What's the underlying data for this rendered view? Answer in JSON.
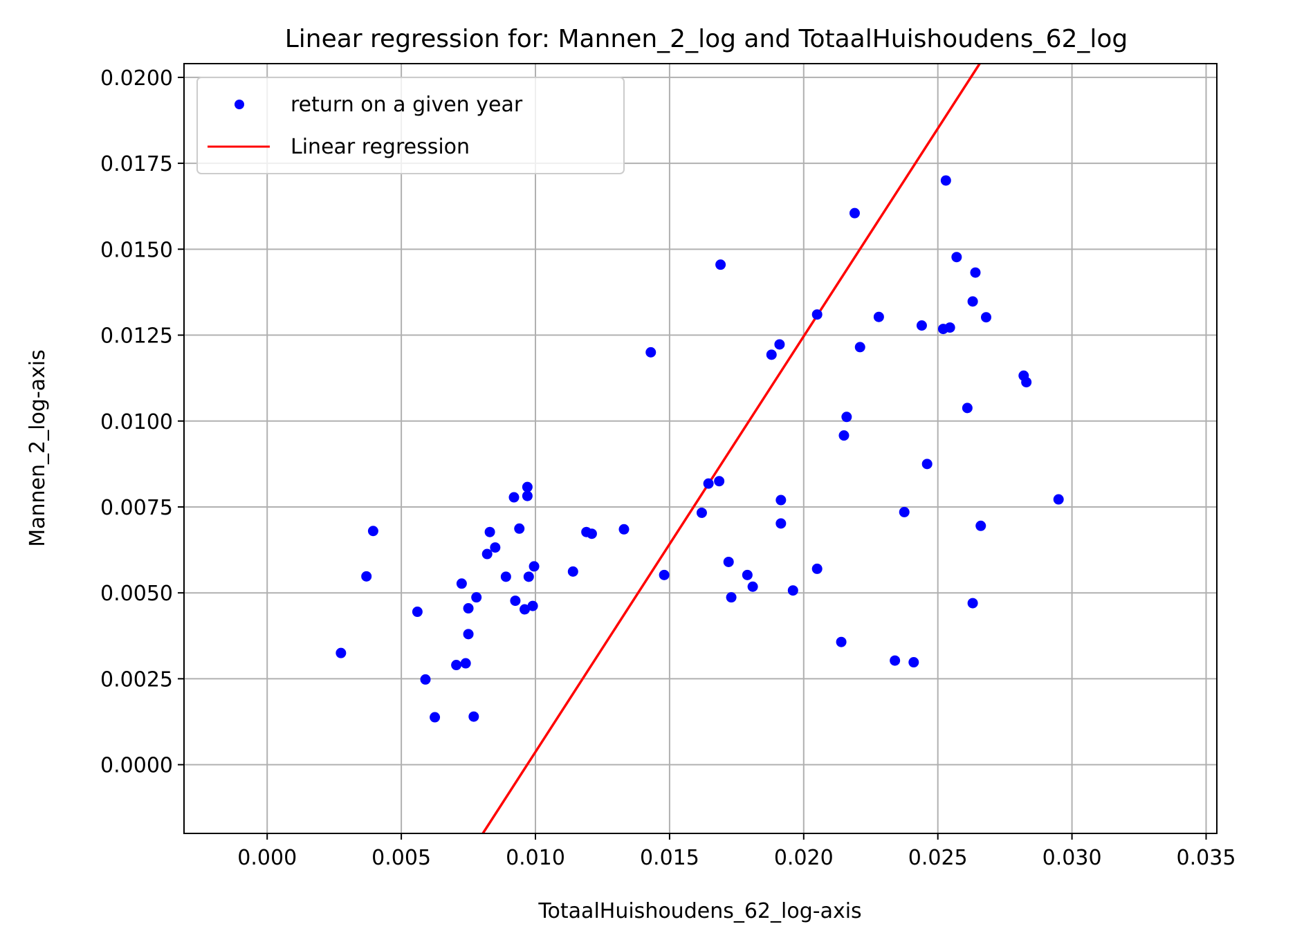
{
  "chart_data": {
    "type": "scatter",
    "title": "Linear regression for: Mannen_2_log and TotaalHuishoudens_62_log",
    "xlabel": "TotaalHuishoudens_62_log-axis",
    "ylabel": "Mannen_2_log-axis",
    "xlim": [
      -0.0031,
      0.0354
    ],
    "ylim": [
      -0.002,
      0.0204
    ],
    "xticks": [
      "0.000",
      "0.005",
      "0.010",
      "0.015",
      "0.020",
      "0.025",
      "0.030",
      "0.035"
    ],
    "xtick_values": [
      0.0,
      0.005,
      0.01,
      0.015,
      0.02,
      0.025,
      0.03,
      0.035
    ],
    "yticks": [
      "0.0000",
      "0.0025",
      "0.0050",
      "0.0075",
      "0.0100",
      "0.0125",
      "0.0150",
      "0.0175",
      "0.0200"
    ],
    "ytick_values": [
      0.0,
      0.0025,
      0.005,
      0.0075,
      0.01,
      0.0125,
      0.015,
      0.0175,
      0.02
    ],
    "grid": true,
    "legend_position": "top-left",
    "colors": {
      "points": "#0000ff",
      "regression": "#ff0000"
    },
    "series": [
      {
        "name": "return on a given year",
        "kind": "scatter",
        "points": [
          [
            0.00275,
            0.00325
          ],
          [
            0.0037,
            0.00548
          ],
          [
            0.00395,
            0.0068
          ],
          [
            0.0056,
            0.00445
          ],
          [
            0.0059,
            0.00248
          ],
          [
            0.00625,
            0.00138
          ],
          [
            0.00705,
            0.0029
          ],
          [
            0.00725,
            0.00527
          ],
          [
            0.0074,
            0.00295
          ],
          [
            0.0075,
            0.00455
          ],
          [
            0.0075,
            0.0038
          ],
          [
            0.0077,
            0.0014
          ],
          [
            0.0078,
            0.00487
          ],
          [
            0.0082,
            0.00613
          ],
          [
            0.0083,
            0.00677
          ],
          [
            0.0085,
            0.00632
          ],
          [
            0.0089,
            0.00547
          ],
          [
            0.0092,
            0.00778
          ],
          [
            0.00925,
            0.00477
          ],
          [
            0.0094,
            0.00687
          ],
          [
            0.0096,
            0.00452
          ],
          [
            0.0097,
            0.00808
          ],
          [
            0.0097,
            0.00782
          ],
          [
            0.00975,
            0.00547
          ],
          [
            0.0099,
            0.00462
          ],
          [
            0.00995,
            0.00577
          ],
          [
            0.0114,
            0.00562
          ],
          [
            0.0119,
            0.00677
          ],
          [
            0.0121,
            0.00672
          ],
          [
            0.0133,
            0.00685
          ],
          [
            0.0143,
            0.012
          ],
          [
            0.0148,
            0.00552
          ],
          [
            0.0162,
            0.00733
          ],
          [
            0.01645,
            0.00818
          ],
          [
            0.01685,
            0.00825
          ],
          [
            0.0169,
            0.01455
          ],
          [
            0.0172,
            0.0059
          ],
          [
            0.0173,
            0.00487
          ],
          [
            0.0179,
            0.00552
          ],
          [
            0.0181,
            0.00518
          ],
          [
            0.0188,
            0.01193
          ],
          [
            0.0191,
            0.01223
          ],
          [
            0.01915,
            0.0077
          ],
          [
            0.01915,
            0.00702
          ],
          [
            0.0196,
            0.00507
          ],
          [
            0.0205,
            0.0131
          ],
          [
            0.0205,
            0.0057
          ],
          [
            0.0214,
            0.00357
          ],
          [
            0.0215,
            0.00958
          ],
          [
            0.0216,
            0.01012
          ],
          [
            0.0219,
            0.01605
          ],
          [
            0.0221,
            0.01215
          ],
          [
            0.0228,
            0.01303
          ],
          [
            0.0234,
            0.00303
          ],
          [
            0.02375,
            0.00735
          ],
          [
            0.0241,
            0.00298
          ],
          [
            0.0244,
            0.01278
          ],
          [
            0.0246,
            0.00875
          ],
          [
            0.0252,
            0.01268
          ],
          [
            0.0253,
            0.017
          ],
          [
            0.02545,
            0.01272
          ],
          [
            0.0257,
            0.01477
          ],
          [
            0.0261,
            0.01038
          ],
          [
            0.0263,
            0.01348
          ],
          [
            0.0263,
            0.0047
          ],
          [
            0.0264,
            0.01432
          ],
          [
            0.0266,
            0.00695
          ],
          [
            0.0268,
            0.01302
          ],
          [
            0.0282,
            0.01132
          ],
          [
            0.0283,
            0.01113
          ],
          [
            0.0295,
            0.00772
          ]
        ]
      },
      {
        "name": "Linear regression",
        "kind": "line",
        "points": [
          [
            0.00804,
            -0.002
          ],
          [
            0.02656,
            0.0204
          ]
        ]
      }
    ]
  }
}
